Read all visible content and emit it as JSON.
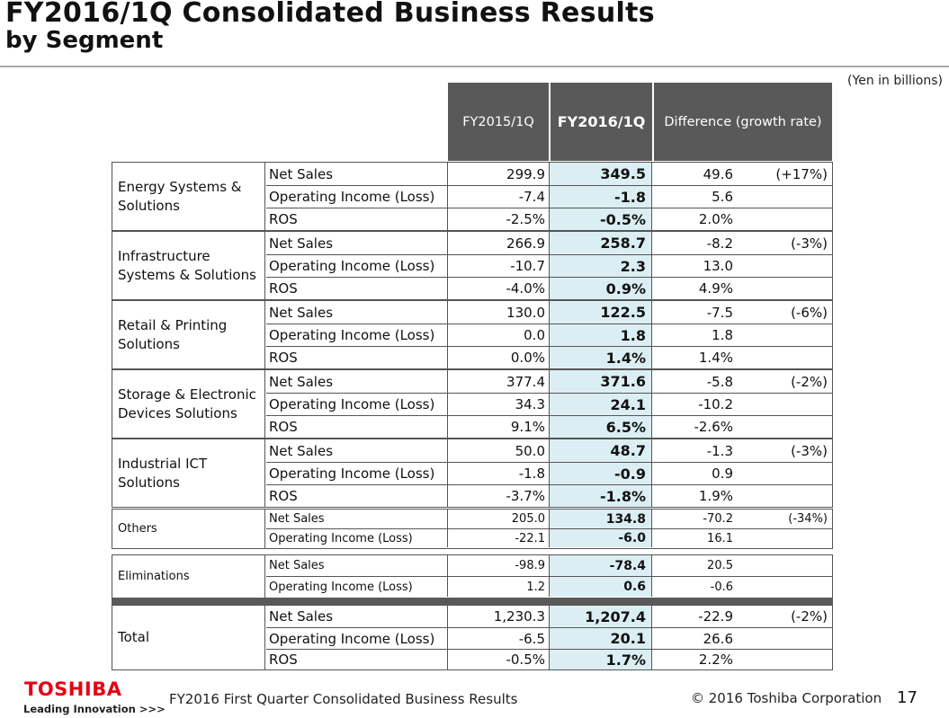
{
  "header": {
    "title_line1": "FY2016/1Q Consolidated Business Results",
    "title_line2": "by Segment",
    "units": "(Yen in billions)"
  },
  "columns": {
    "prev": "FY2015/1Q",
    "cur": "FY2016/1Q",
    "diff": "Difference (growth rate)"
  },
  "segments": [
    {
      "name": "Energy Systems & Solutions",
      "rows": [
        {
          "label": "Net Sales",
          "prev": "299.9",
          "cur": "349.5",
          "diff": "49.6",
          "rate": "(+17%)"
        },
        {
          "label": "Operating Income (Loss)",
          "prev": "-7.4",
          "cur": "-1.8",
          "diff": "5.6",
          "rate": ""
        },
        {
          "label": "ROS",
          "prev": "-2.5%",
          "cur": "-0.5%",
          "diff": "2.0%",
          "rate": ""
        }
      ]
    },
    {
      "name": "Infrastructure Systems & Solutions",
      "rows": [
        {
          "label": "Net Sales",
          "prev": "266.9",
          "cur": "258.7",
          "diff": "-8.2",
          "rate": "(-3%)"
        },
        {
          "label": "Operating Income (Loss)",
          "prev": "-10.7",
          "cur": "2.3",
          "diff": "13.0",
          "rate": ""
        },
        {
          "label": "ROS",
          "prev": "-4.0%",
          "cur": "0.9%",
          "diff": "4.9%",
          "rate": ""
        }
      ]
    },
    {
      "name": "Retail & Printing Solutions",
      "rows": [
        {
          "label": "Net Sales",
          "prev": "130.0",
          "cur": "122.5",
          "diff": "-7.5",
          "rate": "(-6%)"
        },
        {
          "label": "Operating Income (Loss)",
          "prev": "0.0",
          "cur": "1.8",
          "diff": "1.8",
          "rate": ""
        },
        {
          "label": "ROS",
          "prev": "0.0%",
          "cur": "1.4%",
          "diff": "1.4%",
          "rate": ""
        }
      ]
    },
    {
      "name": "Storage & Electronic Devices Solutions",
      "rows": [
        {
          "label": "Net Sales",
          "prev": "377.4",
          "cur": "371.6",
          "diff": "-5.8",
          "rate": "(-2%)"
        },
        {
          "label": "Operating Income (Loss)",
          "prev": "34.3",
          "cur": "24.1",
          "diff": "-10.2",
          "rate": ""
        },
        {
          "label": "ROS",
          "prev": "9.1%",
          "cur": "6.5%",
          "diff": "-2.6%",
          "rate": ""
        }
      ]
    },
    {
      "name": "Industrial ICT Solutions",
      "rows": [
        {
          "label": "Net Sales",
          "prev": "50.0",
          "cur": "48.7",
          "diff": "-1.3",
          "rate": "(-3%)"
        },
        {
          "label": "Operating Income (Loss)",
          "prev": "-1.8",
          "cur": "-0.9",
          "diff": "0.9",
          "rate": ""
        },
        {
          "label": "ROS",
          "prev": "-3.7%",
          "cur": "-1.8%",
          "diff": "1.9%",
          "rate": ""
        }
      ]
    },
    {
      "name": "Others",
      "rows": [
        {
          "label": "Net Sales",
          "prev": "205.0",
          "cur": "134.8",
          "diff": "-70.2",
          "rate": "(-34%)"
        },
        {
          "label": "Operating Income (Loss)",
          "prev": "-22.1",
          "cur": "-6.0",
          "diff": "16.1",
          "rate": ""
        }
      ]
    },
    {
      "name": "Eliminations",
      "rows": [
        {
          "label": "Net Sales",
          "prev": "-98.9",
          "cur": "-78.4",
          "diff": "20.5",
          "rate": ""
        },
        {
          "label": "Operating Income (Loss)",
          "prev": "1.2",
          "cur": "0.6",
          "diff": "-0.6",
          "rate": ""
        }
      ]
    },
    {
      "name": "Total",
      "rows": [
        {
          "label": "Net Sales",
          "prev": "1,230.3",
          "cur": "1,207.4",
          "diff": "-22.9",
          "rate": "(-2%)"
        },
        {
          "label": "Operating Income (Loss)",
          "prev": "-6.5",
          "cur": "20.1",
          "diff": "26.6",
          "rate": ""
        },
        {
          "label": "ROS",
          "prev": "-0.5%",
          "cur": "1.7%",
          "diff": "2.2%",
          "rate": ""
        }
      ]
    }
  ],
  "footer": {
    "logo": "TOSHIBA",
    "tagline": "Leading Innovation >>>",
    "doc_title": "FY2016 First Quarter Consolidated Business Results",
    "copyright": "© 2016 Toshiba Corporation",
    "page": "17"
  }
}
